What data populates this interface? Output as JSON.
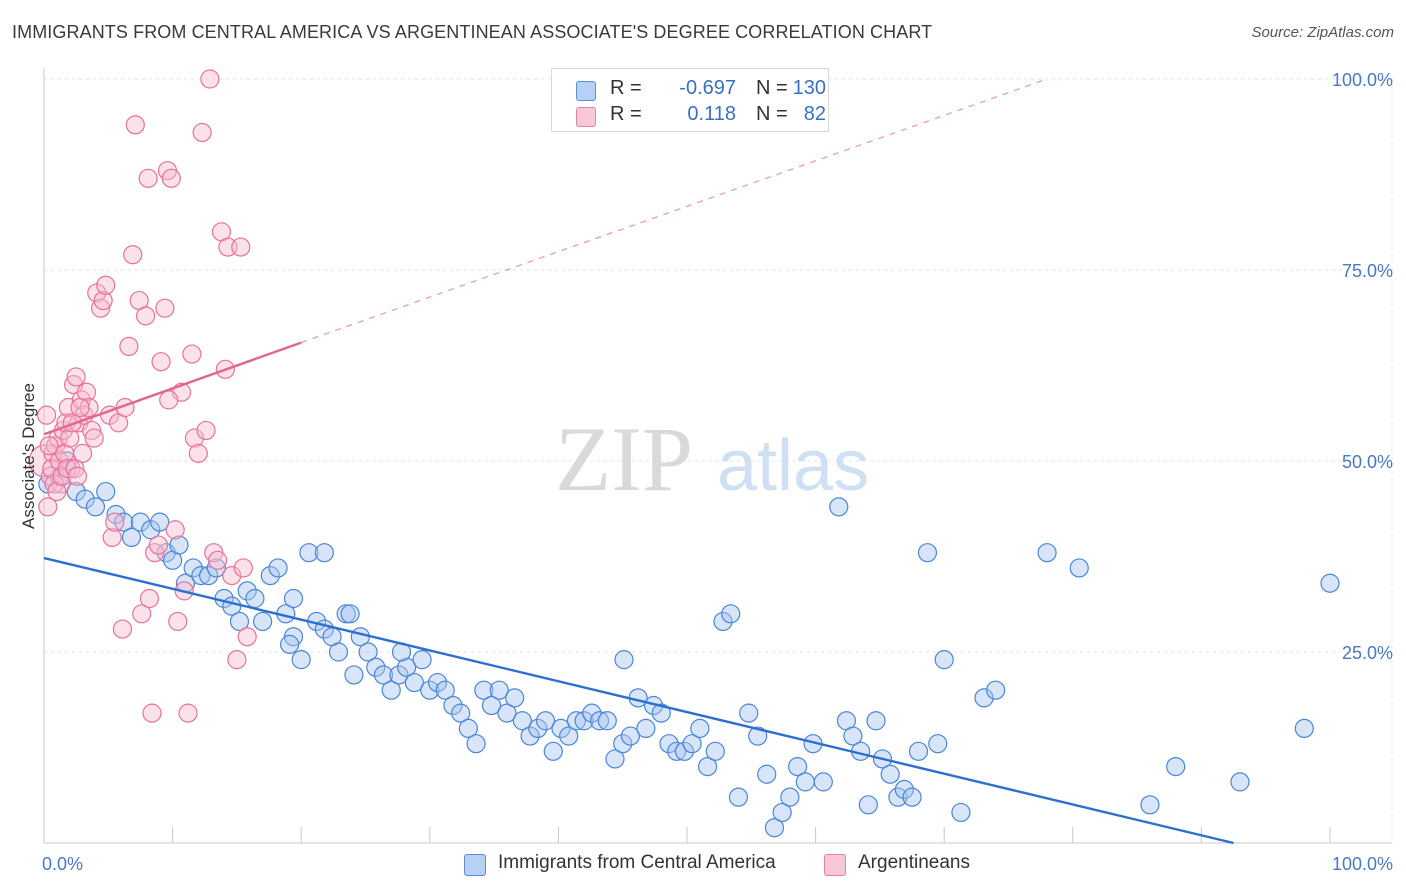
{
  "title": "IMMIGRANTS FROM CENTRAL AMERICA VS ARGENTINEAN ASSOCIATE'S DEGREE CORRELATION CHART",
  "source": "Source: ZipAtlas.com",
  "watermark": {
    "zip": "ZIP",
    "atlas": "atlas"
  },
  "colors": {
    "blue": "#4a86d8",
    "blue_fill": "#a9c6f0",
    "blue_line": "#2d6fd1",
    "pink": "#e8729a",
    "pink_fill": "#f6bdd0",
    "pink_line": "#e0668f",
    "grid": "#e3e3e3",
    "tick_text": "#4a78c2"
  },
  "legend": {
    "r_label": "R =",
    "n_label": "N =",
    "rows": [
      {
        "name": "blue",
        "r": "-0.697",
        "n": "130"
      },
      {
        "name": "pink",
        "r": "0.118",
        "n": "82"
      }
    ]
  },
  "chart_data": {
    "type": "scatter",
    "title": "IMMIGRANTS FROM CENTRAL AMERICA VS ARGENTINEAN ASSOCIATE'S DEGREE CORRELATION CHART",
    "xlabel": "",
    "ylabel": "Associate's Degree",
    "xlim": [
      0,
      100
    ],
    "ylim": [
      0,
      100
    ],
    "x_tick_labels": [
      "0.0%",
      "100.0%"
    ],
    "y_tick_labels": [
      "25.0%",
      "50.0%",
      "75.0%",
      "100.0%"
    ],
    "y_ticks": [
      25,
      50,
      75,
      100
    ],
    "grid": true,
    "legend_position": "top-center",
    "series": [
      {
        "name": "Immigrants from Central America",
        "color": "blue",
        "r": -0.697,
        "n": 130,
        "trend": {
          "x": [
            0,
            92.5
          ],
          "y": [
            37.3,
            0
          ],
          "dashed_to": null
        },
        "points": [
          [
            0.3,
            47
          ],
          [
            1.2,
            48
          ],
          [
            1.8,
            50
          ],
          [
            2.5,
            46
          ],
          [
            3.2,
            45
          ],
          [
            4,
            44
          ],
          [
            4.8,
            46
          ],
          [
            5.6,
            43
          ],
          [
            6.2,
            42
          ],
          [
            6.8,
            40
          ],
          [
            7.5,
            42
          ],
          [
            8.3,
            41
          ],
          [
            9,
            42
          ],
          [
            9.5,
            38
          ],
          [
            10,
            37
          ],
          [
            10.5,
            39
          ],
          [
            11,
            34
          ],
          [
            11.6,
            36
          ],
          [
            12.2,
            35
          ],
          [
            12.8,
            35
          ],
          [
            13.4,
            36
          ],
          [
            14,
            32
          ],
          [
            14.6,
            31
          ],
          [
            15.2,
            29
          ],
          [
            15.8,
            33
          ],
          [
            16.4,
            32
          ],
          [
            17,
            29
          ],
          [
            17.6,
            35
          ],
          [
            18.2,
            36
          ],
          [
            18.8,
            30
          ],
          [
            19.4,
            32
          ],
          [
            19.4,
            27
          ],
          [
            20,
            24
          ],
          [
            20.6,
            38
          ],
          [
            21.2,
            29
          ],
          [
            21.8,
            28
          ],
          [
            22.4,
            27
          ],
          [
            22.9,
            25
          ],
          [
            23.5,
            30
          ],
          [
            24.1,
            22
          ],
          [
            24.6,
            27
          ],
          [
            25.2,
            25
          ],
          [
            25.8,
            23
          ],
          [
            26.4,
            22
          ],
          [
            27,
            20
          ],
          [
            27.6,
            22
          ],
          [
            28.2,
            23
          ],
          [
            28.8,
            21
          ],
          [
            29.4,
            24
          ],
          [
            30,
            20
          ],
          [
            30.6,
            21
          ],
          [
            31.2,
            20
          ],
          [
            31.8,
            18
          ],
          [
            32.4,
            17
          ],
          [
            33,
            15
          ],
          [
            33.6,
            13
          ],
          [
            34.2,
            20
          ],
          [
            34.8,
            18
          ],
          [
            35.4,
            20
          ],
          [
            36,
            17
          ],
          [
            36.6,
            19
          ],
          [
            37.2,
            16
          ],
          [
            37.8,
            14
          ],
          [
            38.4,
            15
          ],
          [
            39,
            16
          ],
          [
            39.6,
            12
          ],
          [
            40.2,
            15
          ],
          [
            40.8,
            14
          ],
          [
            41.4,
            16
          ],
          [
            42,
            16
          ],
          [
            42.6,
            17
          ],
          [
            43.2,
            16
          ],
          [
            43.8,
            16
          ],
          [
            44.4,
            11
          ],
          [
            45,
            13
          ],
          [
            45.6,
            14
          ],
          [
            46.2,
            19
          ],
          [
            46.8,
            15
          ],
          [
            47.4,
            18
          ],
          [
            48,
            17
          ],
          [
            48.6,
            13
          ],
          [
            49.2,
            12
          ],
          [
            49.8,
            12
          ],
          [
            50.4,
            13
          ],
          [
            51,
            15
          ],
          [
            51.6,
            10
          ],
          [
            52.2,
            12
          ],
          [
            52.8,
            29
          ],
          [
            53.4,
            30
          ],
          [
            54,
            6
          ],
          [
            54.8,
            17
          ],
          [
            55.5,
            14
          ],
          [
            56.2,
            9
          ],
          [
            56.8,
            2
          ],
          [
            57.4,
            4
          ],
          [
            58,
            6
          ],
          [
            58.6,
            10
          ],
          [
            59.2,
            8
          ],
          [
            59.8,
            13
          ],
          [
            60.6,
            8
          ],
          [
            61.8,
            44
          ],
          [
            62.4,
            16
          ],
          [
            62.9,
            14
          ],
          [
            63.5,
            12
          ],
          [
            64.1,
            5
          ],
          [
            64.7,
            16
          ],
          [
            65.2,
            11
          ],
          [
            65.8,
            9
          ],
          [
            66.4,
            6
          ],
          [
            66.9,
            7
          ],
          [
            67.5,
            6
          ],
          [
            68,
            12
          ],
          [
            68.7,
            38
          ],
          [
            69.5,
            13
          ],
          [
            70,
            24
          ],
          [
            71.3,
            4
          ],
          [
            73.1,
            19
          ],
          [
            74,
            20
          ],
          [
            78,
            38
          ],
          [
            80.5,
            36
          ],
          [
            86,
            5
          ],
          [
            88,
            10
          ],
          [
            93,
            8
          ],
          [
            98,
            15
          ],
          [
            100,
            34
          ],
          [
            21.8,
            38
          ],
          [
            19.1,
            26
          ],
          [
            23.8,
            30
          ],
          [
            27.8,
            25
          ],
          [
            45.1,
            24
          ]
        ]
      },
      {
        "name": "Argentineans",
        "color": "pink",
        "r": 0.118,
        "n": 82,
        "trend": {
          "x": [
            0,
            20
          ],
          "y": [
            53.5,
            65.5
          ],
          "dashed_to": [
            78,
            100
          ]
        },
        "points": [
          [
            0.1,
            50
          ],
          [
            0.3,
            44
          ],
          [
            0.5,
            48
          ],
          [
            0.7,
            51
          ],
          [
            0.9,
            52
          ],
          [
            1.1,
            53
          ],
          [
            1.3,
            47
          ],
          [
            1.5,
            54
          ],
          [
            1.7,
            55
          ],
          [
            1.9,
            57
          ],
          [
            2.1,
            49
          ],
          [
            2.3,
            60
          ],
          [
            2.5,
            61
          ],
          [
            2.7,
            55
          ],
          [
            2.9,
            58
          ],
          [
            3.1,
            56
          ],
          [
            3.3,
            59
          ],
          [
            3.5,
            57
          ],
          [
            3.7,
            54
          ],
          [
            3.9,
            53
          ],
          [
            4.1,
            72
          ],
          [
            4.4,
            70
          ],
          [
            4.6,
            71
          ],
          [
            4.8,
            73
          ],
          [
            5.1,
            56
          ],
          [
            5.3,
            40
          ],
          [
            5.5,
            42
          ],
          [
            5.8,
            55
          ],
          [
            6.1,
            28
          ],
          [
            6.3,
            57
          ],
          [
            6.6,
            65
          ],
          [
            6.9,
            77
          ],
          [
            7.1,
            94
          ],
          [
            7.4,
            71
          ],
          [
            7.6,
            30
          ],
          [
            7.9,
            69
          ],
          [
            8.1,
            87
          ],
          [
            8.4,
            17
          ],
          [
            8.6,
            38
          ],
          [
            8.9,
            39
          ],
          [
            9.1,
            63
          ],
          [
            9.4,
            70
          ],
          [
            9.6,
            88
          ],
          [
            9.9,
            87
          ],
          [
            10.2,
            41
          ],
          [
            10.4,
            29
          ],
          [
            10.7,
            59
          ],
          [
            10.9,
            33
          ],
          [
            11.2,
            17
          ],
          [
            11.5,
            64
          ],
          [
            11.7,
            53
          ],
          [
            12,
            51
          ],
          [
            12.3,
            93
          ],
          [
            12.6,
            54
          ],
          [
            12.9,
            100
          ],
          [
            13.2,
            38
          ],
          [
            13.5,
            37
          ],
          [
            13.8,
            80
          ],
          [
            14.1,
            62
          ],
          [
            14.3,
            78
          ],
          [
            14.6,
            35
          ],
          [
            15,
            24
          ],
          [
            15.3,
            78
          ],
          [
            15.5,
            36
          ],
          [
            15.8,
            27
          ],
          [
            0.2,
            56
          ],
          [
            0.4,
            52
          ],
          [
            0.6,
            49
          ],
          [
            0.8,
            47
          ],
          [
            1.0,
            46
          ],
          [
            1.2,
            50
          ],
          [
            1.4,
            48
          ],
          [
            1.6,
            51
          ],
          [
            1.8,
            49
          ],
          [
            2.0,
            53
          ],
          [
            2.2,
            55
          ],
          [
            2.4,
            49
          ],
          [
            2.6,
            48
          ],
          [
            2.8,
            57
          ],
          [
            3.0,
            51
          ],
          [
            8.2,
            32
          ],
          [
            9.7,
            58
          ]
        ]
      }
    ]
  },
  "bottom_legend": [
    {
      "name": "blue",
      "label": "Immigrants from Central America"
    },
    {
      "name": "pink",
      "label": "Argentineans"
    }
  ]
}
